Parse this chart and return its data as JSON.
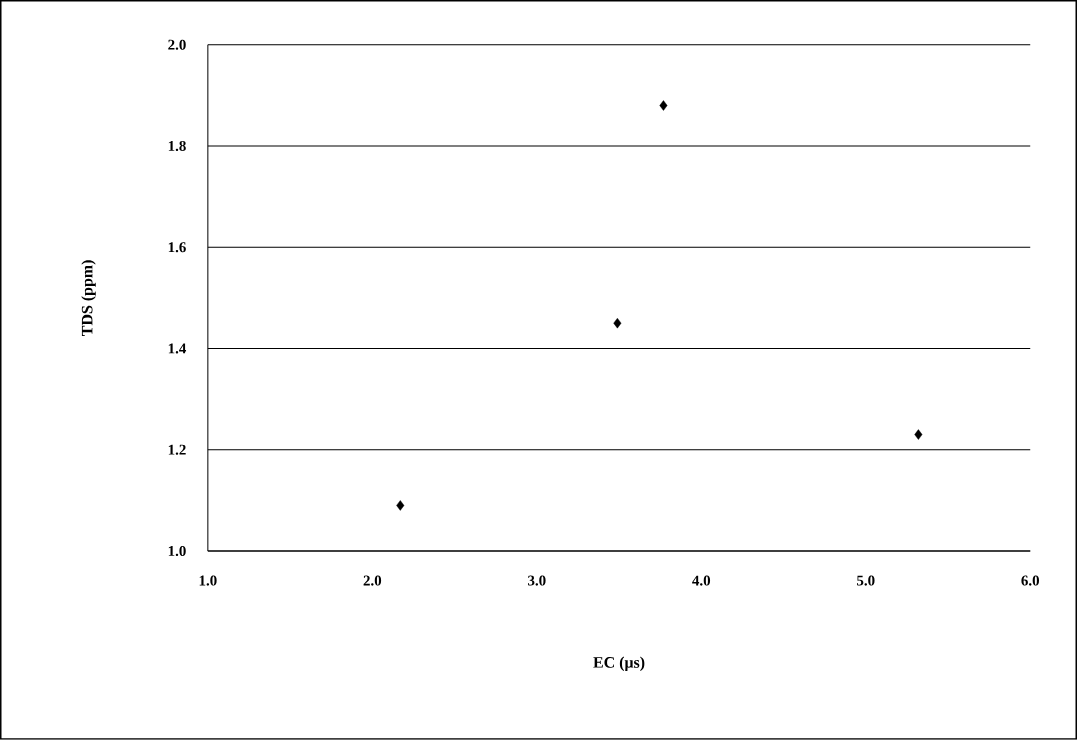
{
  "chart_data": {
    "type": "scatter",
    "xlabel": "EC (μs)",
    "ylabel": "TDS (ppm)",
    "x": [
      2.17,
      3.49,
      3.77,
      5.32
    ],
    "values": [
      1.09,
      1.45,
      1.88,
      1.23
    ],
    "color": "#000000",
    "marker": "diamond",
    "grid": "y",
    "xlim": [
      1.0,
      6.0
    ],
    "ylim": [
      1.0,
      2.0
    ],
    "xticks": [
      {
        "value": 1,
        "label": "1.0"
      },
      {
        "value": 2,
        "label": "2.0"
      },
      {
        "value": 3,
        "label": "3.0"
      },
      {
        "value": 4,
        "label": "4.0"
      },
      {
        "value": 5,
        "label": "5.0"
      },
      {
        "value": 6,
        "label": "6.0"
      }
    ],
    "yticks": [
      {
        "value": 1,
        "label": "1.0"
      },
      {
        "value": 1.2,
        "label": "1.2"
      },
      {
        "value": 1.4,
        "label": "1.4"
      },
      {
        "value": 1.6,
        "label": "1.6"
      },
      {
        "value": 1.8,
        "label": "1.8"
      },
      {
        "value": 2,
        "label": "2.0"
      }
    ]
  }
}
